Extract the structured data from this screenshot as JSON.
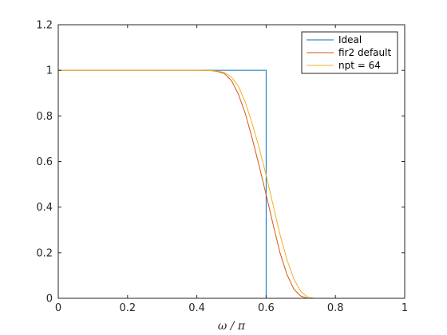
{
  "chart_data": {
    "type": "line",
    "xlabel": "ω / π",
    "ylabel": "",
    "title": "",
    "xlim": [
      0,
      1
    ],
    "ylim": [
      0,
      1.2
    ],
    "x_ticks": [
      0,
      0.2,
      0.4,
      0.6,
      0.8,
      1
    ],
    "x_tick_labels": [
      "0",
      "0.2",
      "0.4",
      "0.6",
      "0.8",
      "1"
    ],
    "y_ticks": [
      0,
      0.2,
      0.4,
      0.6,
      0.8,
      1,
      1.2
    ],
    "y_tick_labels": [
      "0",
      "0.2",
      "0.4",
      "0.6",
      "0.8",
      "1",
      "1.2"
    ],
    "grid": false,
    "legend_position": "top-right",
    "series": [
      {
        "name": "Ideal",
        "color": "#0072BD",
        "x": [
          0,
          0.6,
          0.6,
          1
        ],
        "y": [
          1,
          1,
          0,
          0
        ]
      },
      {
        "name": "fir2 default",
        "color": "#D95319",
        "x": [
          0,
          0.05,
          0.1,
          0.15,
          0.2,
          0.25,
          0.3,
          0.35,
          0.4,
          0.44,
          0.46,
          0.48,
          0.5,
          0.52,
          0.54,
          0.56,
          0.58,
          0.6,
          0.62,
          0.64,
          0.66,
          0.68,
          0.7,
          0.72,
          0.8,
          0.9,
          1
        ],
        "y": [
          1.0,
          1.0,
          1.0,
          1.0,
          1.0,
          1.0,
          1.0,
          1.0,
          1.0,
          0.999,
          0.995,
          0.985,
          0.955,
          0.895,
          0.81,
          0.7,
          0.58,
          0.455,
          0.325,
          0.2,
          0.105,
          0.04,
          0.01,
          0.0,
          0.0,
          0.0,
          0.0
        ]
      },
      {
        "name": "npt = 64",
        "color": "#EDB120",
        "x": [
          0,
          0.05,
          0.1,
          0.15,
          0.2,
          0.25,
          0.3,
          0.35,
          0.4,
          0.44,
          0.46,
          0.48,
          0.5,
          0.52,
          0.54,
          0.56,
          0.58,
          0.6,
          0.62,
          0.64,
          0.66,
          0.68,
          0.7,
          0.72,
          0.74,
          0.8,
          0.9,
          1
        ],
        "y": [
          1.0,
          1.0,
          1.0,
          1.0,
          1.0,
          1.0,
          1.0,
          1.0,
          1.0,
          0.999,
          0.997,
          0.99,
          0.97,
          0.93,
          0.86,
          0.765,
          0.66,
          0.54,
          0.41,
          0.28,
          0.17,
          0.085,
          0.03,
          0.005,
          0.0,
          0.0,
          0.0,
          0.0
        ]
      }
    ]
  }
}
